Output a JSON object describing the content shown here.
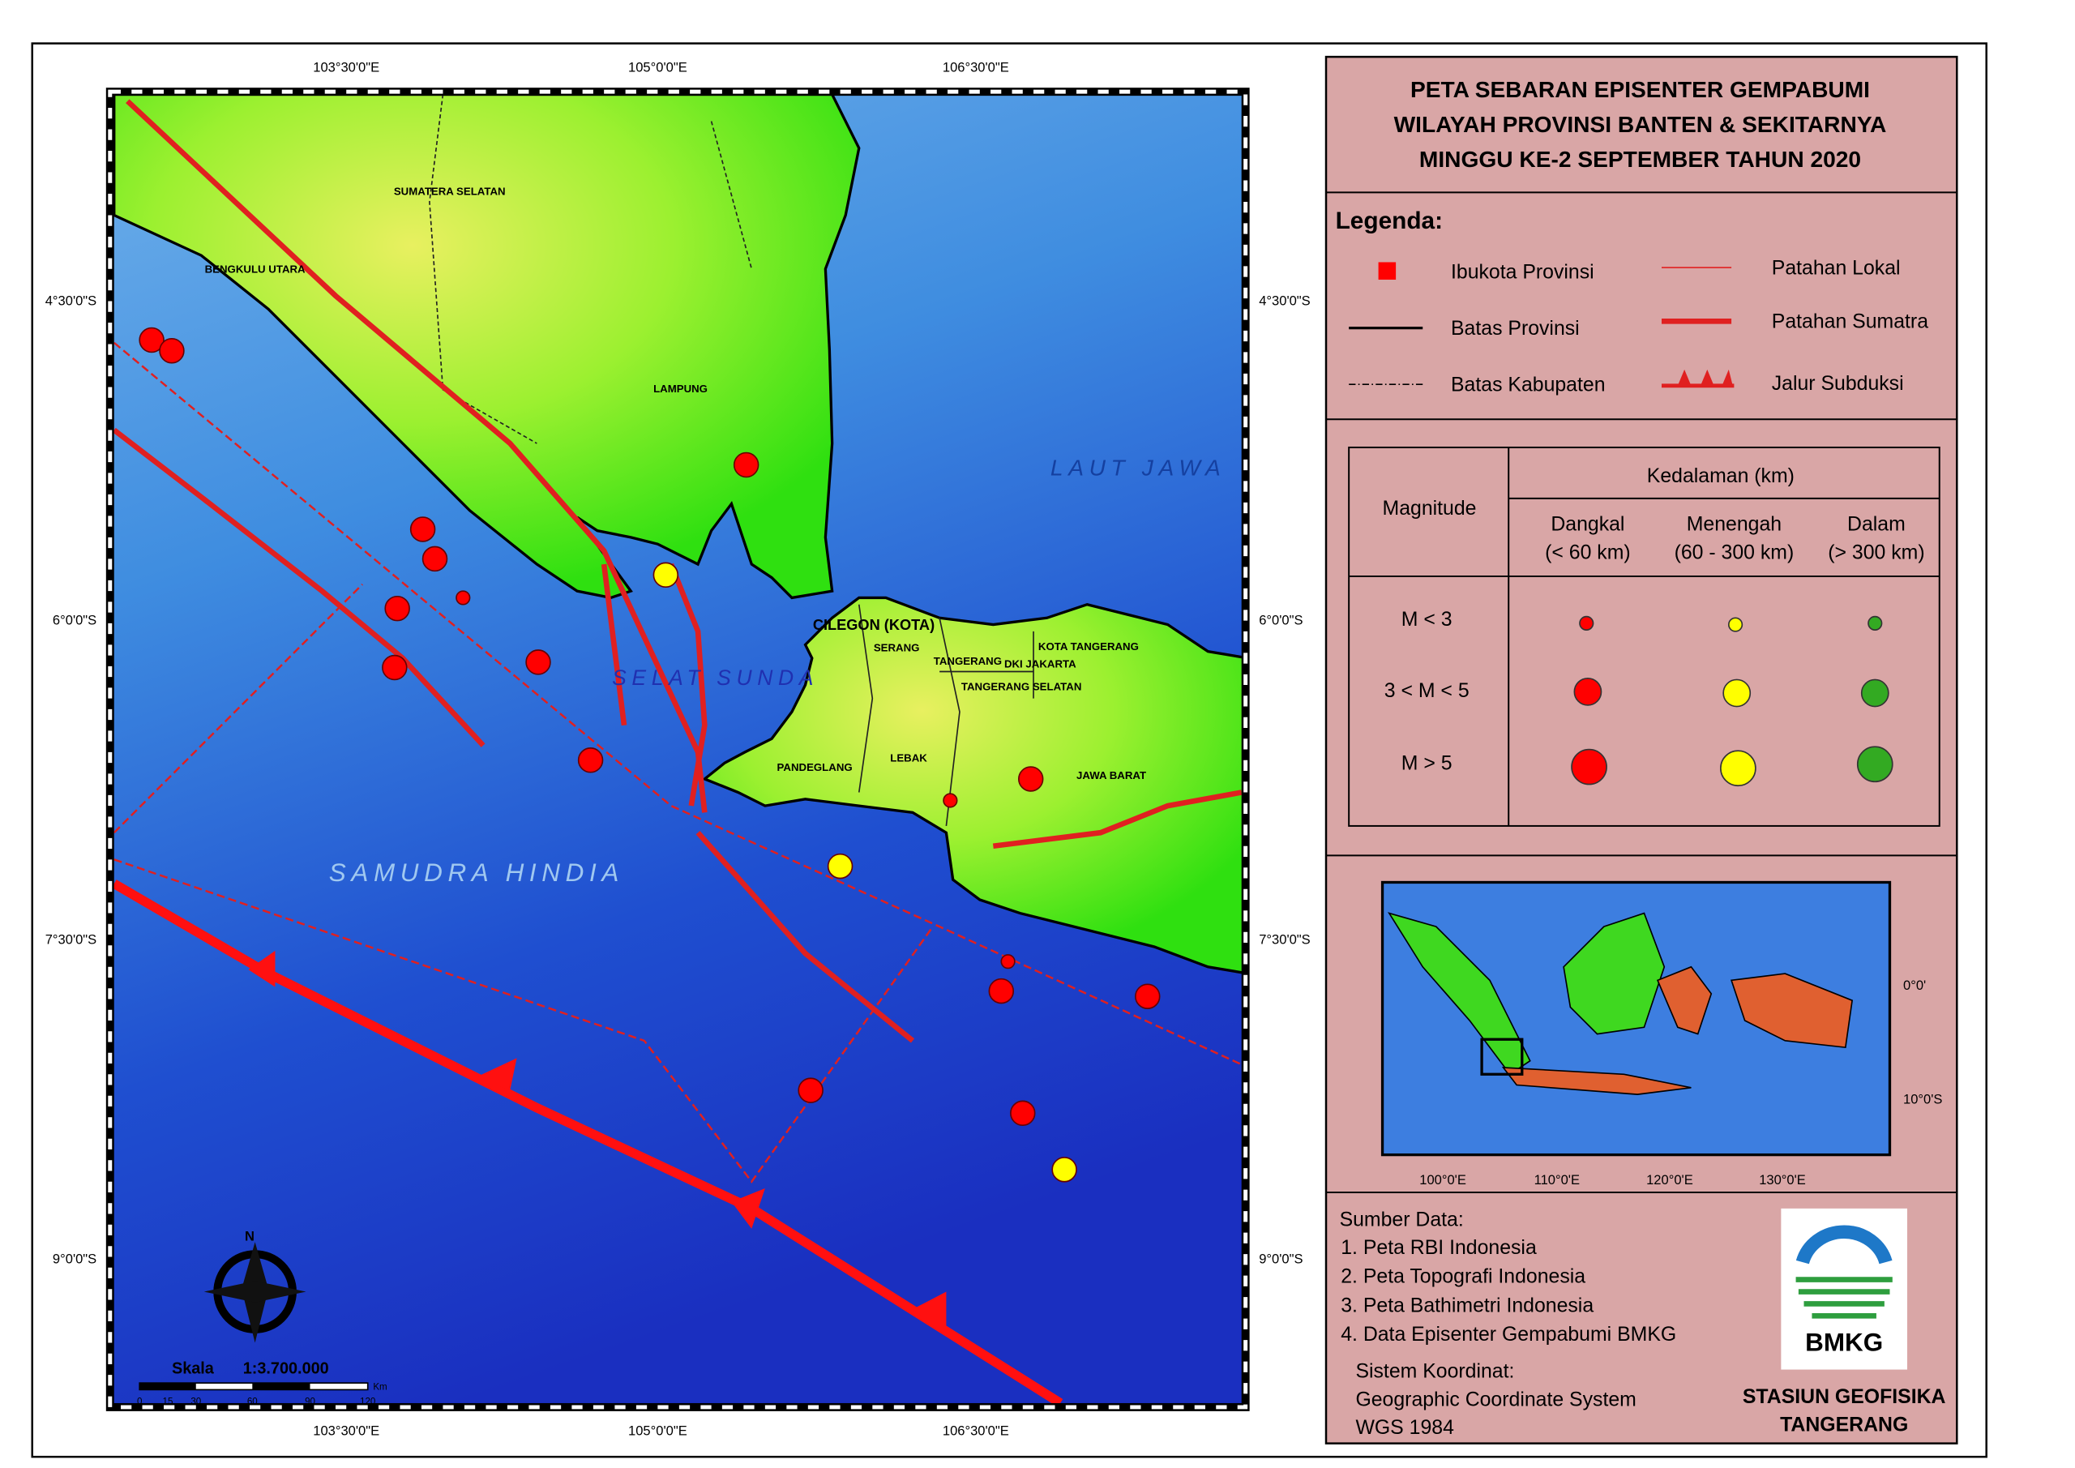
{
  "title": [
    "PETA SEBARAN EPISENTER GEMPABUMI",
    "WILAYAH PROVINSI BANTEN & SEKITARNYA",
    "MINGGU KE-2 SEPTEMBER TAHUN 2020"
  ],
  "map": {
    "lon_labels": [
      "103°30'0\"E",
      "105°0'0\"E",
      "106°30'0\"E"
    ],
    "lat_labels": [
      "4°30'0\"S",
      "6°0'0\"S",
      "7°30'0\"S",
      "9°0'0\"S"
    ],
    "places": [
      "SUMATERA SELATAN",
      "BENGKULU UTARA",
      "LAMPUNG",
      "LAUT JAWA",
      "SELAT SUNDA",
      "CILEGON (KOTA)",
      "SERANG",
      "TANGERANG",
      "DKI JAKARTA",
      "KOTA TANGERANG",
      "TANGERANG SELATAN",
      "PANDEGLANG",
      "LEBAK",
      "JAWA BARAT",
      "SAMUDRA HINDIA"
    ],
    "north": "N",
    "scale_label": "Skala",
    "scale_ratio": "1:3.700.000",
    "scale_unit": "Km",
    "scale_ticks": [
      "0",
      "15",
      "30",
      "60",
      "90",
      "120"
    ]
  },
  "legend": {
    "heading": "Legenda:",
    "items": [
      "Ibukota Provinsi",
      "Batas Provinsi",
      "Batas Kabupaten",
      "Patahan Lokal",
      "Patahan Sumatra",
      "Jalur Subduksi"
    ]
  },
  "depth_table": {
    "magnitude": "Magnitude",
    "depth": "Kedalaman (km)",
    "columns": [
      [
        "Dangkal",
        "(< 60 km)"
      ],
      [
        "Menengah",
        "(60 - 300 km)"
      ],
      [
        "Dalam",
        "(> 300 km)"
      ]
    ],
    "rows": [
      "M < 3",
      "3 < M < 5",
      "M > 5"
    ]
  },
  "inset": {
    "lat_labels": [
      "0°0'",
      "10°0'S"
    ],
    "lon_labels": [
      "100°0'E",
      "110°0'E",
      "120°0'E",
      "130°0'E"
    ]
  },
  "sources": {
    "heading": "Sumber Data:",
    "items": [
      "1. Peta RBI Indonesia",
      "2. Peta Topografi Indonesia",
      "3. Peta Bathimetri Indonesia",
      "4. Data Episenter Gempabumi BMKG"
    ],
    "system_heading": "Sistem Koordinat:",
    "system": [
      "Geographic Coordinate System",
      "WGS 1984"
    ]
  },
  "logo": "BMKG",
  "station": [
    "STASIUN GEOFISIKA",
    "TANGERANG"
  ]
}
